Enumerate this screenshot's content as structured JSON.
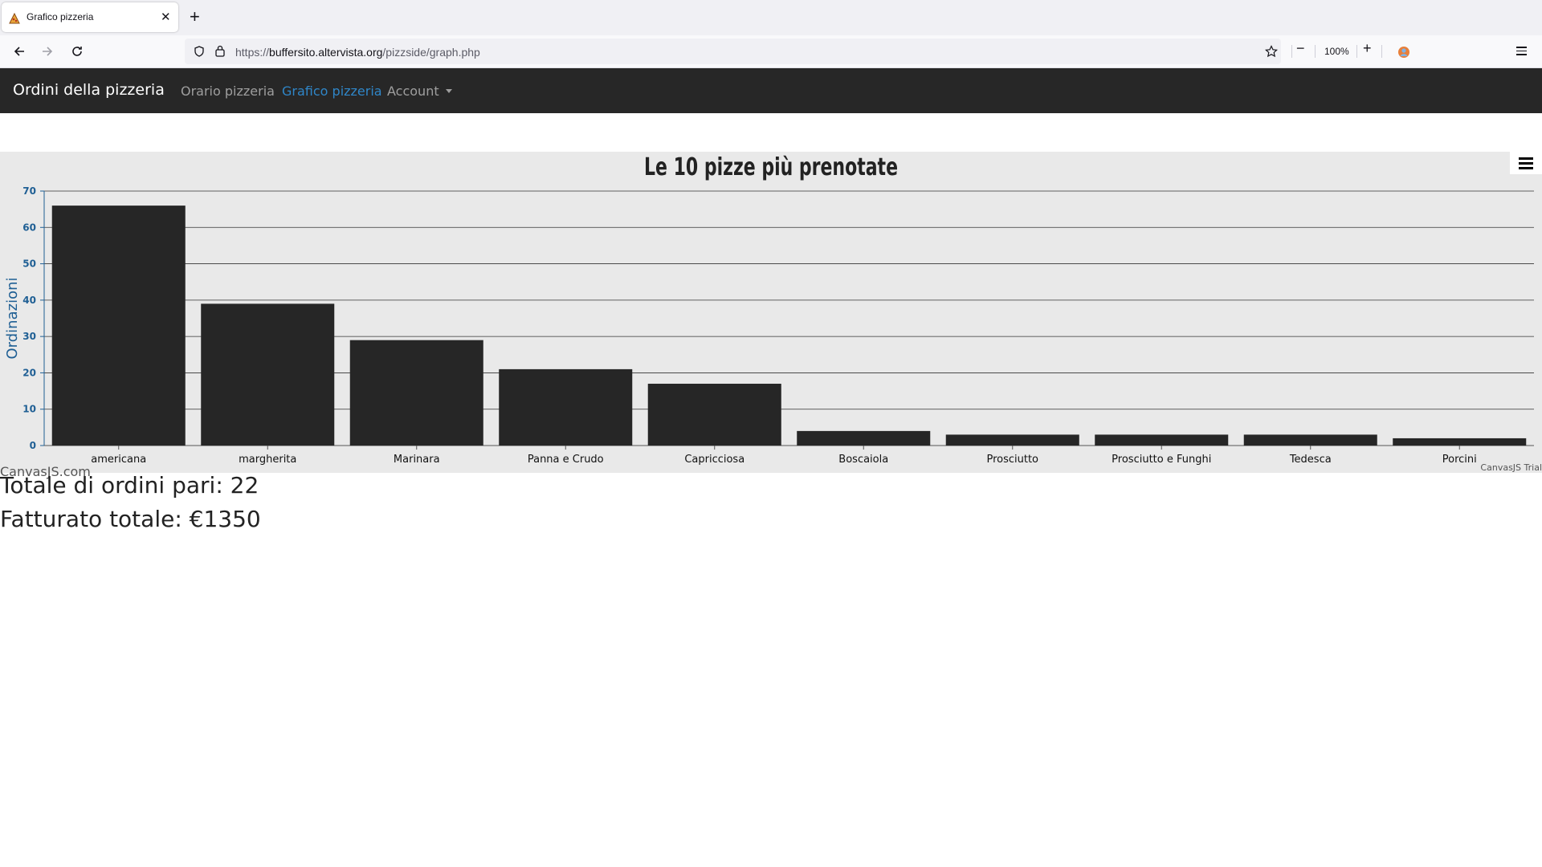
{
  "browser": {
    "tab_title": "Grafico pizzeria",
    "url_scheme": "https://",
    "url_host": "buffersito.altervista.org",
    "url_path": "/pizzside/graph.php",
    "zoom": "100%"
  },
  "navbar": {
    "brand": "Ordini della pizzeria",
    "links": [
      {
        "label": "Orario pizzeria",
        "active": false
      },
      {
        "label": "Grafico pizzeria",
        "active": true
      },
      {
        "label": "Account",
        "active": false
      }
    ]
  },
  "chart_data": {
    "type": "bar",
    "title": "Le 10 pizze più prenotate",
    "ylabel": "Ordinazioni",
    "xlabel": "",
    "categories": [
      "americana",
      "margherita",
      "Marinara",
      "Panna e Crudo",
      "Capricciosa",
      "Boscaiola",
      "Prosciutto",
      "Prosciutto e Funghi",
      "Tedesca",
      "Porcini"
    ],
    "values": [
      66,
      39,
      29,
      21,
      17,
      4,
      3,
      3,
      3,
      2
    ],
    "ylim": [
      0,
      70
    ],
    "yticks": [
      "0",
      "10",
      "20",
      "30",
      "40",
      "50",
      "60",
      "70"
    ],
    "grid": true,
    "bar_color": "#262626",
    "background": "#e9e9e9",
    "axis_color": "#1f5f94"
  },
  "chart_footer": {
    "credit": "CanvasJS.com",
    "trial": "CanvasJS Trial"
  },
  "stats": {
    "orders": "Totale di ordini pari: 22",
    "revenue": "Fatturato totale: €1350"
  }
}
